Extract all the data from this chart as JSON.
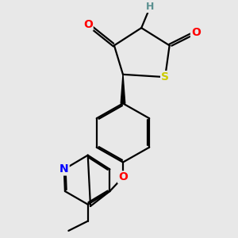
{
  "background_color": "#e8e8e8",
  "atom_colors": {
    "C": "#000000",
    "H": "#5a9090",
    "N": "#0000ff",
    "O": "#ff0000",
    "S": "#cccc00"
  },
  "bond_color": "#000000",
  "bond_width": 1.6,
  "figsize": [
    3.0,
    3.0
  ],
  "dpi": 100
}
